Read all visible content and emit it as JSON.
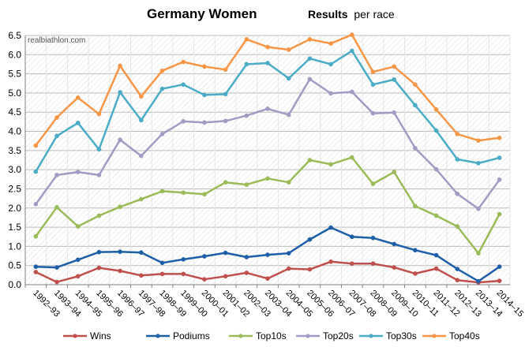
{
  "chart_data": {
    "type": "line",
    "title": "Germany Women",
    "subtitle_bold": "Results",
    "subtitle_rest": "per race",
    "watermark": "realbiathlon.com",
    "ylim": [
      0,
      6.5
    ],
    "yticks": [
      "0.0",
      "0.5",
      "1.0",
      "1.5",
      "2.0",
      "2.5",
      "3.0",
      "3.5",
      "4.0",
      "4.5",
      "5.0",
      "5.5",
      "6.0",
      "6.5"
    ],
    "categories": [
      "1992–93",
      "1993–94",
      "1994–95",
      "1995–96",
      "1996–97",
      "1997–98",
      "1998–99",
      "1999–00",
      "2000–01",
      "2001–02",
      "2002–03",
      "2003–04",
      "2004–05",
      "2005–06",
      "2006–07",
      "2007–08",
      "2008–09",
      "2009–10",
      "2010–11",
      "2011–12",
      "2012–13",
      "2013–14",
      "2014–15"
    ],
    "series": [
      {
        "name": "Wins",
        "color": "#C0504D",
        "values": [
          0.33,
          0.07,
          0.22,
          0.44,
          0.36,
          0.24,
          0.28,
          0.28,
          0.14,
          0.22,
          0.31,
          0.16,
          0.42,
          0.4,
          0.6,
          0.55,
          0.55,
          0.45,
          0.29,
          0.42,
          0.12,
          0.06,
          0.1
        ]
      },
      {
        "name": "Podiums",
        "color": "#1F5FA8",
        "values": [
          0.47,
          0.45,
          0.65,
          0.85,
          0.86,
          0.84,
          0.57,
          0.66,
          0.74,
          0.83,
          0.72,
          0.78,
          0.82,
          1.18,
          1.49,
          1.25,
          1.22,
          1.06,
          0.9,
          0.77,
          0.41,
          0.09,
          0.47
        ]
      },
      {
        "name": "Top10s",
        "color": "#9BBB59",
        "values": [
          1.26,
          2.02,
          1.52,
          1.8,
          2.03,
          2.23,
          2.44,
          2.4,
          2.36,
          2.67,
          2.61,
          2.77,
          2.67,
          3.25,
          3.14,
          3.32,
          2.63,
          2.94,
          2.05,
          1.8,
          1.52,
          0.82,
          1.84
        ]
      },
      {
        "name": "Top20s",
        "color": "#A49BC4",
        "values": [
          2.1,
          2.86,
          2.94,
          2.86,
          3.78,
          3.36,
          3.93,
          4.26,
          4.23,
          4.27,
          4.41,
          4.59,
          4.43,
          5.36,
          4.99,
          5.03,
          4.47,
          4.49,
          3.56,
          3.01,
          2.37,
          1.98,
          2.74
        ]
      },
      {
        "name": "Top30s",
        "color": "#4BACC6",
        "values": [
          2.95,
          3.88,
          4.22,
          3.53,
          5.02,
          4.29,
          5.11,
          5.22,
          4.95,
          4.97,
          5.75,
          5.78,
          5.38,
          5.9,
          5.75,
          6.1,
          5.22,
          5.35,
          4.68,
          4.02,
          3.27,
          3.17,
          3.31
        ]
      },
      {
        "name": "Top40s",
        "color": "#F79646",
        "values": [
          3.63,
          4.36,
          4.88,
          4.45,
          5.71,
          4.91,
          5.58,
          5.81,
          5.69,
          5.61,
          6.4,
          6.2,
          6.13,
          6.4,
          6.29,
          6.52,
          5.55,
          5.69,
          5.22,
          4.57,
          3.93,
          3.76,
          3.83
        ]
      }
    ]
  }
}
